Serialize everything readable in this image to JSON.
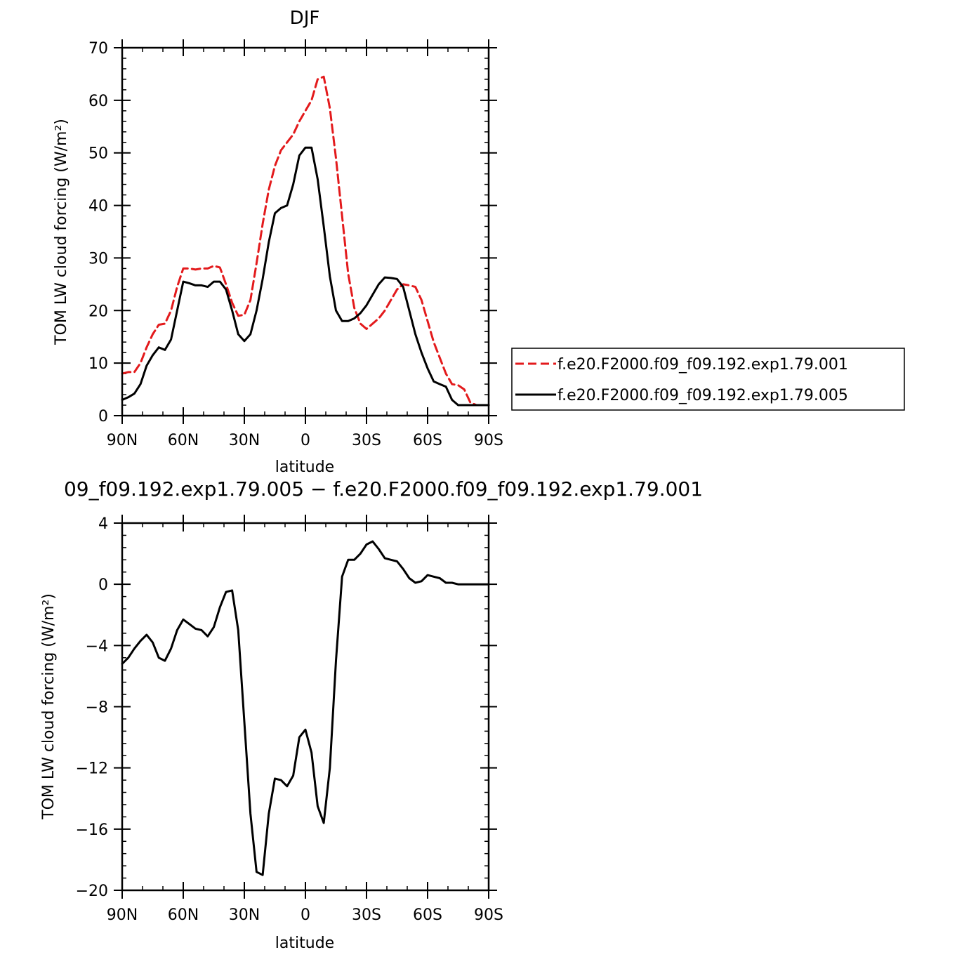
{
  "colors": {
    "run1": "#e31a1c",
    "run2": "#000000",
    "diff": "#000000"
  },
  "chart_data": [
    {
      "type": "line",
      "title": "DJF",
      "xlabel": "latitude",
      "ylabel": "TOM LW cloud forcing (W/m²)",
      "xlim": [
        90,
        -90
      ],
      "ylim": [
        0,
        70
      ],
      "xticks": [
        90,
        60,
        30,
        0,
        -30,
        -60,
        -90
      ],
      "xtick_labels": [
        "90N",
        "60N",
        "30N",
        "0",
        "30S",
        "60S",
        "90S"
      ],
      "yticks": [
        0,
        10,
        20,
        30,
        40,
        50,
        60,
        70
      ],
      "ytick_labels": [
        "0",
        "10",
        "20",
        "30",
        "40",
        "50",
        "60",
        "70"
      ],
      "legend_position": "right",
      "series": [
        {
          "name": "f.e20.F2000.f09_f09.192.exp1.79.001",
          "style": "dashed",
          "color": "#e31a1c",
          "x": [
            90,
            87,
            84,
            81,
            78,
            75,
            72,
            69,
            66,
            63,
            60,
            57,
            54,
            51,
            48,
            45,
            42,
            39,
            36,
            33,
            30,
            27,
            24,
            21,
            18,
            15,
            12,
            9,
            6,
            3,
            0,
            -3,
            -6,
            -9,
            -12,
            -15,
            -18,
            -21,
            -24,
            -27,
            -30,
            -33,
            -36,
            -39,
            -42,
            -45,
            -48,
            -51,
            -54,
            -57,
            -60,
            -63,
            -66,
            -69,
            -72,
            -75,
            -78,
            -81,
            -84,
            -87,
            -90
          ],
          "y": [
            8,
            8.3,
            8.3,
            10,
            13,
            15.5,
            17.3,
            17.5,
            20,
            24.5,
            28,
            28,
            27.8,
            28,
            28,
            28.5,
            28.2,
            25,
            21.5,
            19,
            19.2,
            22,
            29,
            36.5,
            43,
            47.5,
            50.5,
            52,
            53.5,
            56,
            58,
            60,
            64,
            64.5,
            58.5,
            49,
            38,
            27,
            20.5,
            17.5,
            16.5,
            17.5,
            18.5,
            20,
            22,
            24,
            25,
            24.8,
            24.5,
            22,
            18,
            14,
            11,
            8,
            6,
            5.8,
            5,
            2.5,
            2,
            2,
            2
          ],
          "note": "x index beyond 87 limited to plotted range"
        },
        {
          "name": "f.e20.F2000.f09_f09.192.exp1.79.005",
          "style": "solid",
          "color": "#000000",
          "x": [
            90,
            87,
            84,
            81,
            78,
            75,
            72,
            69,
            66,
            63,
            60,
            57,
            54,
            51,
            48,
            45,
            42,
            39,
            36,
            33,
            30,
            27,
            24,
            21,
            18,
            15,
            12,
            9,
            6,
            3,
            0,
            -3,
            -6,
            -9,
            -12,
            -15,
            -18,
            -21,
            -24,
            -27,
            -30,
            -33,
            -36,
            -39,
            -42,
            -45,
            -48,
            -51,
            -54,
            -57,
            -60,
            -63,
            -66,
            -69,
            -72,
            -75,
            -78,
            -81,
            -84,
            -87,
            -90
          ],
          "y": [
            3,
            3.5,
            4.2,
            6,
            9.5,
            11.5,
            13,
            12.5,
            14.5,
            20,
            25.5,
            25.2,
            24.8,
            24.8,
            24.5,
            25.5,
            25.5,
            24,
            20,
            15.5,
            14.2,
            15.5,
            20,
            26,
            33,
            38.5,
            39.5,
            40,
            44,
            49.5,
            51,
            51,
            45,
            36,
            26.5,
            20,
            18,
            18,
            18.5,
            19.5,
            21,
            23,
            25,
            26.3,
            26.2,
            26,
            24.5,
            20,
            15.5,
            12,
            9,
            6.5,
            6,
            5.5,
            3,
            2,
            2,
            2,
            2,
            2,
            2
          ]
        }
      ]
    },
    {
      "type": "line",
      "title": "09_f09.192.exp1.79.005 − f.e20.F2000.f09_f09.192.exp1.79.001",
      "xlabel": "latitude",
      "ylabel": "TOM LW cloud forcing (W/m²)",
      "xlim": [
        90,
        -90
      ],
      "ylim": [
        -20,
        4
      ],
      "xticks": [
        90,
        60,
        30,
        0,
        -30,
        -60,
        -90
      ],
      "xtick_labels": [
        "90N",
        "60N",
        "30N",
        "0",
        "30S",
        "60S",
        "90S"
      ],
      "yticks": [
        -20,
        -16,
        -12,
        -8,
        -4,
        0,
        4
      ],
      "ytick_labels": [
        "−20",
        "−16",
        "−12",
        "−8",
        "−4",
        "0",
        "4"
      ],
      "series": [
        {
          "color": "#000000",
          "style": "solid",
          "x": [
            90,
            87,
            84,
            81,
            78,
            75,
            72,
            69,
            66,
            63,
            60,
            57,
            54,
            51,
            48,
            45,
            42,
            39,
            36,
            33,
            30,
            27,
            24,
            21,
            18,
            15,
            12,
            9,
            6,
            3,
            0,
            -3,
            -6,
            -9,
            -12,
            -15,
            -18,
            -21,
            -24,
            -27,
            -30,
            -33,
            -36,
            -39,
            -42,
            -45,
            -48,
            -51,
            -54,
            -57,
            -60,
            -63,
            -66,
            -69,
            -72,
            -75,
            -78,
            -81,
            -84,
            -87,
            -90
          ],
          "y": [
            -5.2,
            -4.8,
            -4.2,
            -3.7,
            -3.3,
            -3.8,
            -4.8,
            -5.0,
            -4.2,
            -3.0,
            -2.3,
            -2.6,
            -2.9,
            -3.0,
            -3.4,
            -2.8,
            -1.5,
            -0.5,
            -0.4,
            -3.0,
            -9.0,
            -15.0,
            -18.8,
            -19.0,
            -15.0,
            -12.7,
            -12.8,
            -13.2,
            -12.5,
            -10.0,
            -9.5,
            -11.0,
            -14.5,
            -15.6,
            -12.0,
            -5.0,
            0.5,
            1.6,
            1.6,
            2.0,
            2.6,
            2.8,
            2.3,
            1.7,
            1.6,
            1.5,
            1.0,
            0.4,
            0.1,
            0.2,
            0.6,
            0.5,
            0.4,
            0.1,
            0.1,
            0,
            0,
            0,
            0,
            0,
            0
          ]
        }
      ]
    }
  ]
}
